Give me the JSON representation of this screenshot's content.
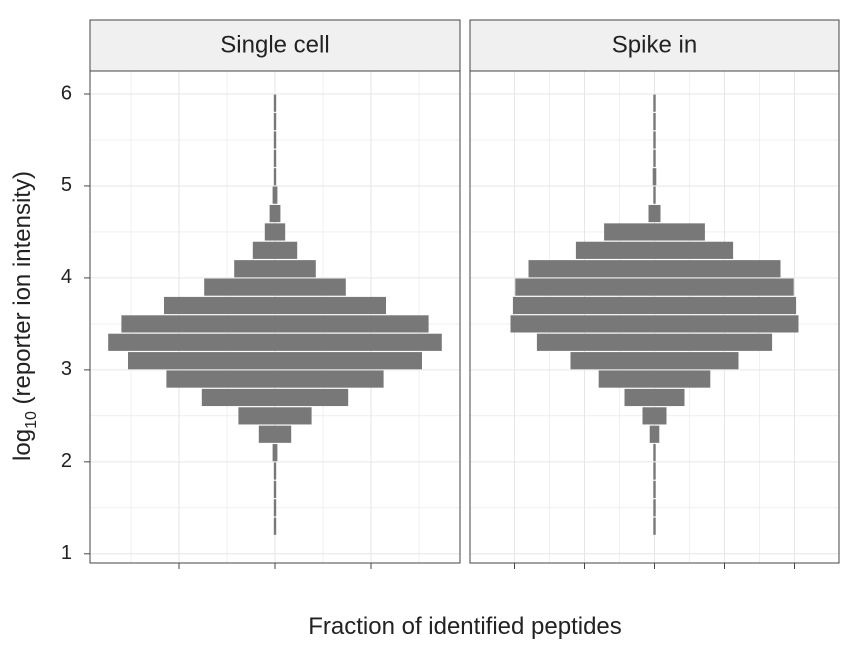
{
  "chart_data": {
    "type": "bar",
    "orientation": "horizontal-violin",
    "xlabel": "Fraction of identified peptides",
    "ylabel": "log",
    "ylabel_subscript": "10",
    "ylabel_suffix": " (reporter ion intensity)",
    "ylim": [
      0.9,
      6.25
    ],
    "yticks": [
      "1",
      "2",
      "3",
      "4",
      "5",
      "6"
    ],
    "bin_width": 0.2,
    "grid": true,
    "colors": {
      "bar": "#787878",
      "strip": "#f0f0f0",
      "grid": "#e6e6e6",
      "frame": "#444444"
    },
    "panels": [
      {
        "title": "Single cell",
        "bins": [
          {
            "y": 1.3,
            "value": 0.0015
          },
          {
            "y": 1.5,
            "value": 0.003
          },
          {
            "y": 1.7,
            "value": 0.003
          },
          {
            "y": 1.9,
            "value": 0.01
          },
          {
            "y": 2.1,
            "value": 0.04
          },
          {
            "y": 2.3,
            "value": 0.27
          },
          {
            "y": 2.5,
            "value": 0.61
          },
          {
            "y": 2.7,
            "value": 1.22
          },
          {
            "y": 2.9,
            "value": 1.81
          },
          {
            "y": 3.1,
            "value": 2.45
          },
          {
            "y": 3.3,
            "value": 2.78
          },
          {
            "y": 3.5,
            "value": 2.56
          },
          {
            "y": 3.7,
            "value": 1.85
          },
          {
            "y": 3.9,
            "value": 1.18
          },
          {
            "y": 4.1,
            "value": 0.68
          },
          {
            "y": 4.3,
            "value": 0.37
          },
          {
            "y": 4.5,
            "value": 0.17
          },
          {
            "y": 4.7,
            "value": 0.09
          },
          {
            "y": 4.9,
            "value": 0.04
          },
          {
            "y": 5.1,
            "value": 0.02
          },
          {
            "y": 5.3,
            "value": 0.005
          },
          {
            "y": 5.5,
            "value": 0.003
          },
          {
            "y": 5.7,
            "value": 0.002
          },
          {
            "y": 5.9,
            "value": 0.001
          }
        ]
      },
      {
        "title": "Spike in",
        "bins": [
          {
            "y": 1.3,
            "value": 0.001
          },
          {
            "y": 1.5,
            "value": 0.002
          },
          {
            "y": 1.7,
            "value": 0.01
          },
          {
            "y": 1.9,
            "value": 0.001
          },
          {
            "y": 2.1,
            "value": 0.02
          },
          {
            "y": 2.3,
            "value": 0.08
          },
          {
            "y": 2.5,
            "value": 0.2
          },
          {
            "y": 2.7,
            "value": 0.5
          },
          {
            "y": 2.9,
            "value": 0.93
          },
          {
            "y": 3.1,
            "value": 1.4
          },
          {
            "y": 3.3,
            "value": 1.96
          },
          {
            "y": 3.5,
            "value": 2.4
          },
          {
            "y": 3.7,
            "value": 2.36
          },
          {
            "y": 3.9,
            "value": 2.32
          },
          {
            "y": 4.1,
            "value": 2.1
          },
          {
            "y": 4.3,
            "value": 1.31
          },
          {
            "y": 4.5,
            "value": 0.84
          },
          {
            "y": 4.7,
            "value": 0.1
          },
          {
            "y": 4.9,
            "value": 0.001
          },
          {
            "y": 5.1,
            "value": 0.03
          },
          {
            "y": 5.3,
            "value": 0.002
          },
          {
            "y": 5.5,
            "value": 0.001
          },
          {
            "y": 5.7,
            "value": 0.001
          },
          {
            "y": 5.9,
            "value": 0.001
          }
        ]
      }
    ]
  }
}
